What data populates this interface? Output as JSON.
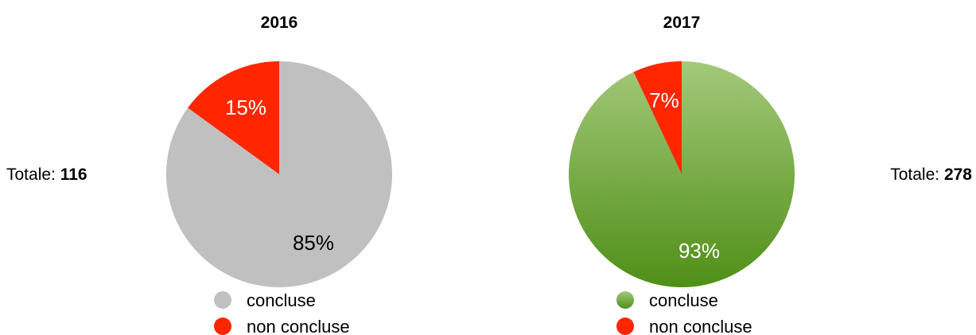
{
  "chart_data": [
    {
      "type": "pie",
      "title": "2016",
      "total_label": "Totale:",
      "total_value": "116",
      "slices": [
        {
          "label": "concluse",
          "value": 85,
          "display": "85%",
          "color": "#c0c0c0",
          "text_color": "#000000"
        },
        {
          "label": "non concluse",
          "value": 15,
          "display": "15%",
          "color": "#ff2600",
          "text_color": "#ffffff"
        }
      ]
    },
    {
      "type": "pie",
      "title": "2017",
      "total_label": "Totale:",
      "total_value": "278",
      "slices": [
        {
          "label": "concluse",
          "value": 93,
          "display": "93%",
          "color": "#6aa33a",
          "text_color": "#ffffff"
        },
        {
          "label": "non concluse",
          "value": 7,
          "display": "7%",
          "color": "#ff2600",
          "text_color": "#ffffff"
        }
      ]
    }
  ]
}
